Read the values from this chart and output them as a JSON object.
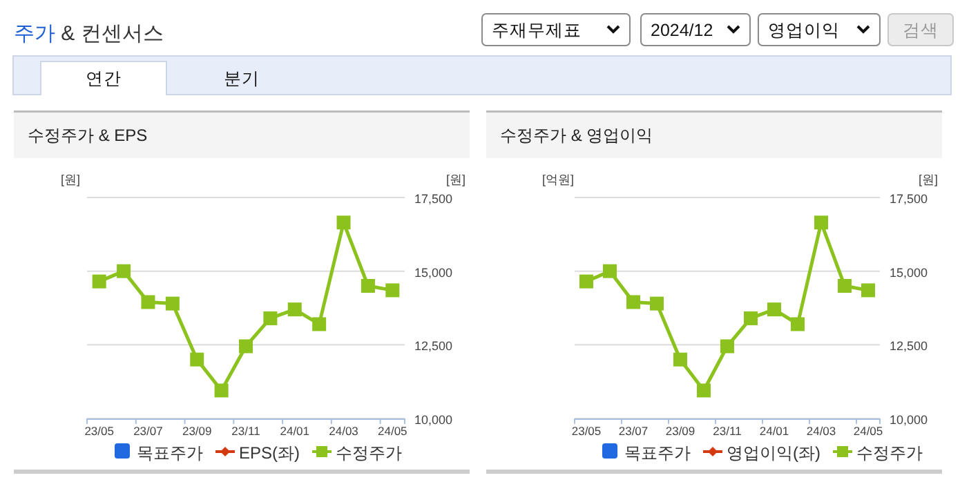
{
  "chart_data": [
    {
      "type": "other",
      "title": "주가 & 컨센서스",
      "annotations": [
        "주재무제표",
        "2024/12",
        "영업이익",
        "검색",
        "연간",
        "분기"
      ]
    },
    {
      "type": "line",
      "title": "수정주가 & EPS",
      "ylabel": "[원]",
      "y2label": "[원]",
      "categories": [
        "23/05",
        null,
        "23/07",
        null,
        "23/09",
        null,
        "23/11",
        null,
        "24/01",
        null,
        "24/03",
        null,
        "24/05"
      ],
      "y2lim": [
        10000,
        17500
      ],
      "y2ticks": [
        {
          "value": 10000,
          "label": "10,000"
        },
        {
          "value": 12500,
          "label": "12,500"
        },
        {
          "value": 15000,
          "label": "15,000"
        },
        {
          "value": 17500,
          "label": "17,500"
        }
      ],
      "grid": "y",
      "legend": "bottom",
      "series": [
        {
          "name": "목표주가",
          "type": "bar",
          "color": "#2069e0",
          "values": [
            null,
            null,
            null,
            null,
            null,
            null,
            null,
            null,
            null,
            null,
            null,
            null,
            null
          ]
        },
        {
          "name": "EPS(좌)",
          "type": "line",
          "marker": "diamond",
          "color": "#d43a12",
          "values": [
            null,
            null,
            null,
            null,
            null,
            null,
            null,
            null,
            null,
            null,
            null,
            null,
            null
          ]
        },
        {
          "name": "수정주가",
          "type": "line",
          "marker": "square",
          "color": "#8cc21e",
          "axis": "y2",
          "values": [
            14650,
            15000,
            13950,
            13900,
            12000,
            10950,
            12450,
            13400,
            13700,
            13200,
            16650,
            14500,
            14350
          ]
        }
      ]
    },
    {
      "type": "line",
      "title": "수정주가 & 영업이익",
      "ylabel": "[억원]",
      "y2label": "[원]",
      "categories": [
        "23/05",
        null,
        "23/07",
        null,
        "23/09",
        null,
        "23/11",
        null,
        "24/01",
        null,
        "24/03",
        null,
        "24/05"
      ],
      "y2lim": [
        10000,
        17500
      ],
      "y2ticks": [
        {
          "value": 10000,
          "label": "10,000"
        },
        {
          "value": 12500,
          "label": "12,500"
        },
        {
          "value": 15000,
          "label": "15,000"
        },
        {
          "value": 17500,
          "label": "17,500"
        }
      ],
      "grid": "y",
      "legend": "bottom",
      "series": [
        {
          "name": "목표주가",
          "type": "bar",
          "color": "#2069e0",
          "values": [
            null,
            null,
            null,
            null,
            null,
            null,
            null,
            null,
            null,
            null,
            null,
            null,
            null
          ]
        },
        {
          "name": "영업이익(좌)",
          "type": "line",
          "marker": "diamond",
          "color": "#d43a12",
          "values": [
            null,
            null,
            null,
            null,
            null,
            null,
            null,
            null,
            null,
            null,
            null,
            null,
            null
          ]
        },
        {
          "name": "수정주가",
          "type": "line",
          "marker": "square",
          "color": "#8cc21e",
          "axis": "y2",
          "values": [
            14650,
            15000,
            13950,
            13900,
            12000,
            10950,
            12450,
            13400,
            13700,
            13200,
            16650,
            14500,
            14350
          ]
        }
      ]
    }
  ]
}
